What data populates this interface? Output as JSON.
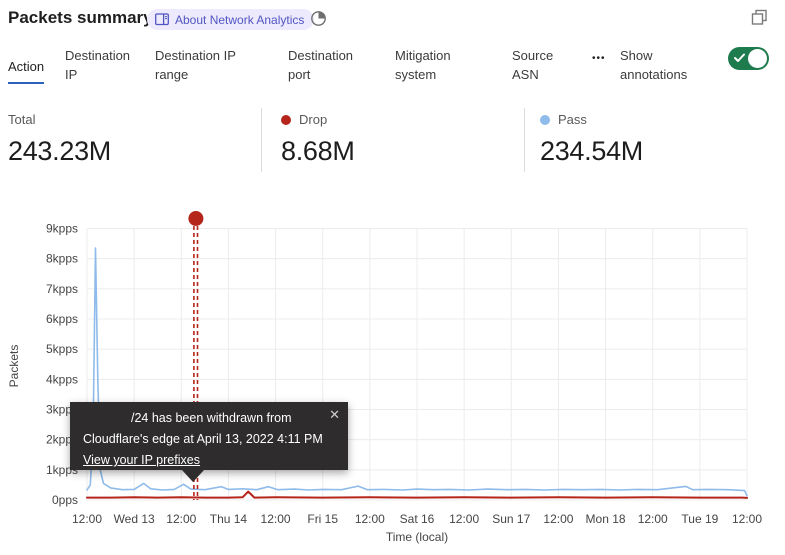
{
  "header": {
    "title": "Packets summary",
    "about_badge": "About Network Analytics",
    "book_icon": "book",
    "time_icon": "time-period",
    "expand_icon": "expand"
  },
  "tabs": {
    "items": [
      {
        "label": "Action",
        "active": true
      },
      {
        "label": "Destination IP",
        "active": false
      },
      {
        "label": "Destination IP range",
        "active": false
      },
      {
        "label": "Destination port",
        "active": false
      },
      {
        "label": "Mitigation system",
        "active": false
      },
      {
        "label": "Source ASN",
        "active": false
      }
    ],
    "more": "•••",
    "show_annotations": "Show annotations",
    "annotations_enabled": true
  },
  "stats": [
    {
      "label": "Total",
      "value": "243.23M"
    },
    {
      "label": "Drop",
      "value": "8.68M",
      "dot_color": "#b5251a"
    },
    {
      "label": "Pass",
      "value": "234.54M",
      "dot_color": "#8fbbea"
    }
  ],
  "tooltip": {
    "line1": "/24 has been withdrawn from",
    "line2": "Cloudflare's edge at April 13, 2022 4:11 PM",
    "link_text": "View your IP prefixes",
    "close_icon": "✕"
  },
  "colors": {
    "accent_blue": "#2b63bf",
    "toggle_green": "#1e7b4e",
    "drop_red": "#b5251a",
    "pass_blue": "#8fbbea",
    "badge_bg": "#eceafc",
    "badge_text": "#5155c2",
    "grid": "#ececec"
  },
  "chart_data": {
    "type": "line",
    "xlabel": "Time (local)",
    "ylabel": "Packets",
    "ylim": [
      0,
      9
    ],
    "x_range": [
      0,
      14
    ],
    "grid": true,
    "y_ticks": {
      "values": [
        0,
        1,
        2,
        3,
        4,
        5,
        6,
        7,
        8,
        9
      ],
      "labels": [
        "0pps",
        "1kpps",
        "2kpps",
        "3kpps",
        "4kpps",
        "5kpps",
        "6kpps",
        "7kpps",
        "8kpps",
        "9kpps"
      ]
    },
    "x_ticks": {
      "labels": [
        "12:00",
        "Wed 13",
        "12:00",
        "Thu 14",
        "12:00",
        "Fri 15",
        "12:00",
        "Sat 16",
        "12:00",
        "Sun 17",
        "12:00",
        "Mon 18",
        "12:00",
        "Tue 19",
        "12:00"
      ]
    },
    "series": [
      {
        "name": "Pass",
        "color": "#8fbbea",
        "unit": "kpps",
        "width": 1.6,
        "points": [
          [
            0,
            0.33
          ],
          [
            0.07,
            0.5
          ],
          [
            0.13,
            2.2
          ],
          [
            0.18,
            8.35
          ],
          [
            0.23,
            4.0
          ],
          [
            0.28,
            1.0
          ],
          [
            0.35,
            0.55
          ],
          [
            0.5,
            0.4
          ],
          [
            0.75,
            0.34
          ],
          [
            1.0,
            0.35
          ],
          [
            1.2,
            0.55
          ],
          [
            1.35,
            0.37
          ],
          [
            1.6,
            0.33
          ],
          [
            1.85,
            0.35
          ],
          [
            2.05,
            0.52
          ],
          [
            2.2,
            0.36
          ],
          [
            2.5,
            0.34
          ],
          [
            2.85,
            0.44
          ],
          [
            3.0,
            0.35
          ],
          [
            3.3,
            0.37
          ],
          [
            3.6,
            0.34
          ],
          [
            3.85,
            0.44
          ],
          [
            4.05,
            0.34
          ],
          [
            4.4,
            0.36
          ],
          [
            4.7,
            0.33
          ],
          [
            5.0,
            0.35
          ],
          [
            5.4,
            0.34
          ],
          [
            5.75,
            0.46
          ],
          [
            5.95,
            0.34
          ],
          [
            6.3,
            0.35
          ],
          [
            6.7,
            0.33
          ],
          [
            7.0,
            0.36
          ],
          [
            7.35,
            0.34
          ],
          [
            7.7,
            0.35
          ],
          [
            8.1,
            0.33
          ],
          [
            8.5,
            0.36
          ],
          [
            8.9,
            0.34
          ],
          [
            9.3,
            0.35
          ],
          [
            9.7,
            0.33
          ],
          [
            10.1,
            0.35
          ],
          [
            10.5,
            0.34
          ],
          [
            10.9,
            0.35
          ],
          [
            11.3,
            0.33
          ],
          [
            11.7,
            0.35
          ],
          [
            12.1,
            0.34
          ],
          [
            12.7,
            0.45
          ],
          [
            12.85,
            0.34
          ],
          [
            13.2,
            0.35
          ],
          [
            13.6,
            0.34
          ],
          [
            13.95,
            0.31
          ],
          [
            14,
            0.14
          ]
        ]
      },
      {
        "name": "Drop",
        "color": "#b5251a",
        "unit": "kpps",
        "width": 2,
        "points": [
          [
            0,
            0.08
          ],
          [
            0.5,
            0.08
          ],
          [
            1,
            0.09
          ],
          [
            1.5,
            0.08
          ],
          [
            2,
            0.09
          ],
          [
            2.5,
            0.08
          ],
          [
            3,
            0.08
          ],
          [
            3.3,
            0.09
          ],
          [
            3.42,
            0.28
          ],
          [
            3.55,
            0.08
          ],
          [
            4,
            0.09
          ],
          [
            5,
            0.08
          ],
          [
            6,
            0.09
          ],
          [
            7,
            0.08
          ],
          [
            8,
            0.09
          ],
          [
            9,
            0.08
          ],
          [
            10,
            0.09
          ],
          [
            11,
            0.08
          ],
          [
            12,
            0.09
          ],
          [
            13,
            0.08
          ],
          [
            13.9,
            0.08
          ],
          [
            14,
            0.07
          ]
        ]
      }
    ],
    "annotation": {
      "x": 2.31,
      "color": "#b5251a",
      "style": "double-dashed-line-with-dot"
    }
  }
}
